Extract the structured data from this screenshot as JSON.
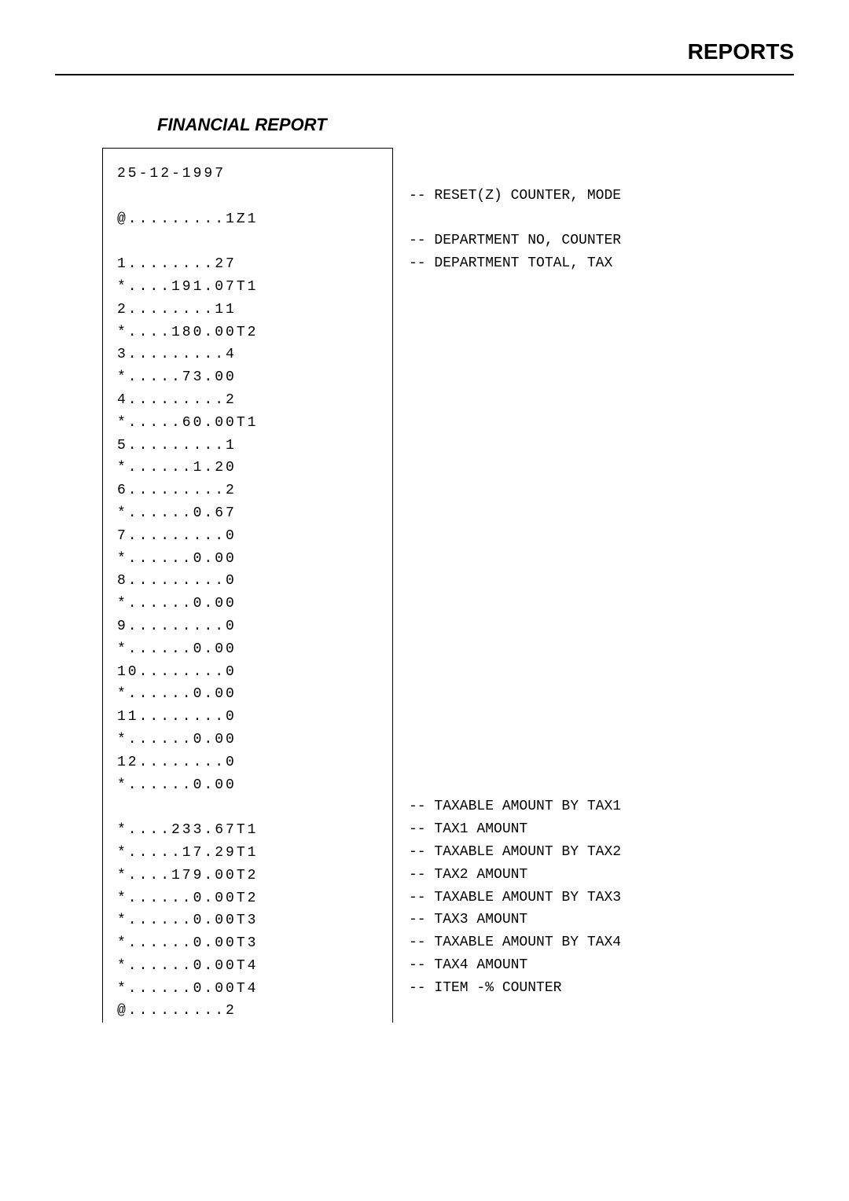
{
  "header": {
    "page_title": "REPORTS",
    "section_title": "FINANCIAL REPORT"
  },
  "receipt": {
    "date": "25-12-1997",
    "lines": [
      "@.........1Z1",
      "",
      "1........27",
      "*....191.07T1",
      "2........11",
      "*....180.00T2",
      "3.........4",
      "*.....73.00",
      "4.........2",
      "*.....60.00T1",
      "5.........1",
      "*......1.20",
      "6.........2",
      "*......0.67",
      "7.........0",
      "*......0.00",
      "8.........0",
      "*......0.00",
      "9.........0",
      "*......0.00",
      "10........0",
      "*......0.00",
      "11........0",
      "*......0.00",
      "12........0",
      "*......0.00",
      "",
      "*....233.67T1",
      "*.....17.29T1",
      "*....179.00T2",
      "*......0.00T2",
      "*......0.00T3",
      "*......0.00T3",
      "*......0.00T4",
      "*......0.00T4",
      "@.........2"
    ]
  },
  "annotations": [
    "",
    "-- RESET(Z) COUNTER, MODE",
    "",
    "-- DEPARTMENT NO, COUNTER",
    "-- DEPARTMENT TOTAL, TAX",
    "",
    "",
    "",
    "",
    "",
    "",
    "",
    "",
    "",
    "",
    "",
    "",
    "",
    "",
    "",
    "",
    "",
    "",
    "",
    "",
    "",
    "",
    "",
    "-- TAXABLE AMOUNT BY TAX1",
    "-- TAX1 AMOUNT",
    "-- TAXABLE AMOUNT BY TAX2",
    "-- TAX2 AMOUNT",
    "-- TAXABLE AMOUNT BY TAX3",
    "-- TAX3 AMOUNT",
    "-- TAXABLE AMOUNT BY TAX4",
    "-- TAX4 AMOUNT",
    "-- ITEM -% COUNTER"
  ]
}
